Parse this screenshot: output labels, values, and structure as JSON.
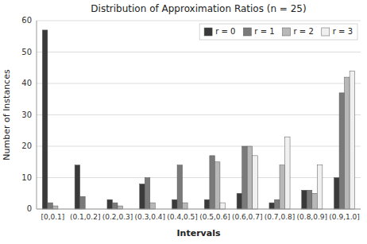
{
  "chart_data": {
    "type": "bar",
    "title": "Distribution of Approximation Ratios (n = 25)",
    "xlabel": "Intervals",
    "ylabel": "Number of Instances",
    "categories": [
      "[0,0.1]",
      "(0.1,0.2]",
      "(0.2,0.3]",
      "(0.3,0.4]",
      "(0.4,0.5]",
      "(0.5,0.6]",
      "(0.6,0.7]",
      "(0.7,0.8]",
      "(0.8,0.9]",
      "(0.9,1.0]"
    ],
    "series": [
      {
        "name": "r = 0",
        "color": "#3a3a3a",
        "values": [
          57,
          14,
          3,
          8,
          3,
          3,
          5,
          2,
          6,
          10
        ]
      },
      {
        "name": "r = 1",
        "color": "#7a7a7a",
        "values": [
          2,
          4,
          2,
          10,
          14,
          17,
          20,
          3,
          6,
          37
        ]
      },
      {
        "name": "r = 2",
        "color": "#b8b8b8",
        "values": [
          1,
          0,
          1,
          2,
          2,
          15,
          20,
          14,
          5,
          42
        ]
      },
      {
        "name": "r = 3",
        "color": "#f0f0f0",
        "values": [
          0,
          0,
          0,
          0,
          0,
          2,
          17,
          23,
          14,
          44
        ]
      }
    ],
    "ylim": [
      0,
      60
    ],
    "yticks": [
      0,
      10,
      20,
      30,
      40,
      50,
      60
    ],
    "grid": true,
    "legend": "upper right"
  }
}
